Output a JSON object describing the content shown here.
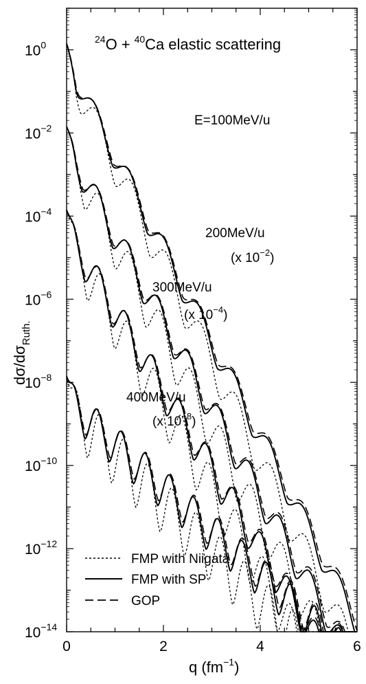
{
  "chart_data": {
    "type": "line",
    "title_parts": {
      "a_mass": "24",
      "a_sym": "O",
      "plus": "+",
      "b_mass": "40",
      "b_sym": "Ca",
      "rest": "elastic scattering"
    },
    "xlabel": {
      "main": "q (fm",
      "exp": "−1",
      "close": ")"
    },
    "ylabel": {
      "main": "dσ/dσ",
      "sub": "Ruth."
    },
    "xlim": [
      0,
      6
    ],
    "ylim_log10": [
      -14,
      1
    ],
    "y_scale": "log",
    "x_ticks": [
      "0",
      "2",
      "4",
      "6"
    ],
    "y_ticks": [
      {
        "exp": 0,
        "base": "10",
        "sup": "0"
      },
      {
        "exp": -2,
        "base": "10",
        "sup": "−2"
      },
      {
        "exp": -4,
        "base": "10",
        "sup": "−4"
      },
      {
        "exp": -6,
        "base": "10",
        "sup": "−6"
      },
      {
        "exp": -8,
        "base": "10",
        "sup": "−8"
      },
      {
        "exp": -10,
        "base": "10",
        "sup": "−10"
      },
      {
        "exp": -12,
        "base": "10",
        "sup": "−12"
      },
      {
        "exp": -14,
        "base": "10",
        "sup": "−14"
      }
    ],
    "legend": {
      "placement": "bottom-left",
      "entries": [
        {
          "label": "FMP with Niigata",
          "style": "dotted"
        },
        {
          "label": "FMP with SP",
          "style": "solid"
        },
        {
          "label": "GOP",
          "style": "dashed"
        }
      ]
    },
    "annotations": [
      {
        "id": "e100",
        "text": "E=100MeV/u"
      },
      {
        "id": "e200",
        "text": "200MeV/u"
      },
      {
        "id": "s200",
        "text_pre": "(x 10",
        "sup": "−2",
        "text_post": ")"
      },
      {
        "id": "e300",
        "text": "300MeV/u"
      },
      {
        "id": "s300",
        "text_pre": "(x 10",
        "sup": "−4",
        "text_post": ")"
      },
      {
        "id": "e400",
        "text": "400MeV/u"
      },
      {
        "id": "s400",
        "text_pre": "(x 10",
        "sup": "−8",
        "text_post": ")"
      }
    ],
    "curves": [
      {
        "energy": "100MeV/u",
        "scale_log10": 0,
        "y0": 0.0,
        "slope": -2.25,
        "x_end": 6.0,
        "period": 0.72,
        "phase": 0.23,
        "amp": 0.3
      },
      {
        "energy": "200MeV/u",
        "scale_log10": -2,
        "y0": -2.0,
        "slope": -2.1,
        "x_end": 6.0,
        "period": 0.63,
        "phase": 0.32,
        "amp": 0.35
      },
      {
        "energy": "300MeV/u",
        "scale_log10": -4,
        "y0": -4.0,
        "slope": -1.9,
        "x_end": 6.0,
        "period": 0.56,
        "phase": 0.38,
        "amp": 0.4
      },
      {
        "energy": "400MeV/u",
        "scale_log10": -8,
        "y0": -8.0,
        "slope": -1.05,
        "x_end": 6.0,
        "period": 0.5,
        "phase": 0.38,
        "amp": 0.45
      }
    ]
  }
}
